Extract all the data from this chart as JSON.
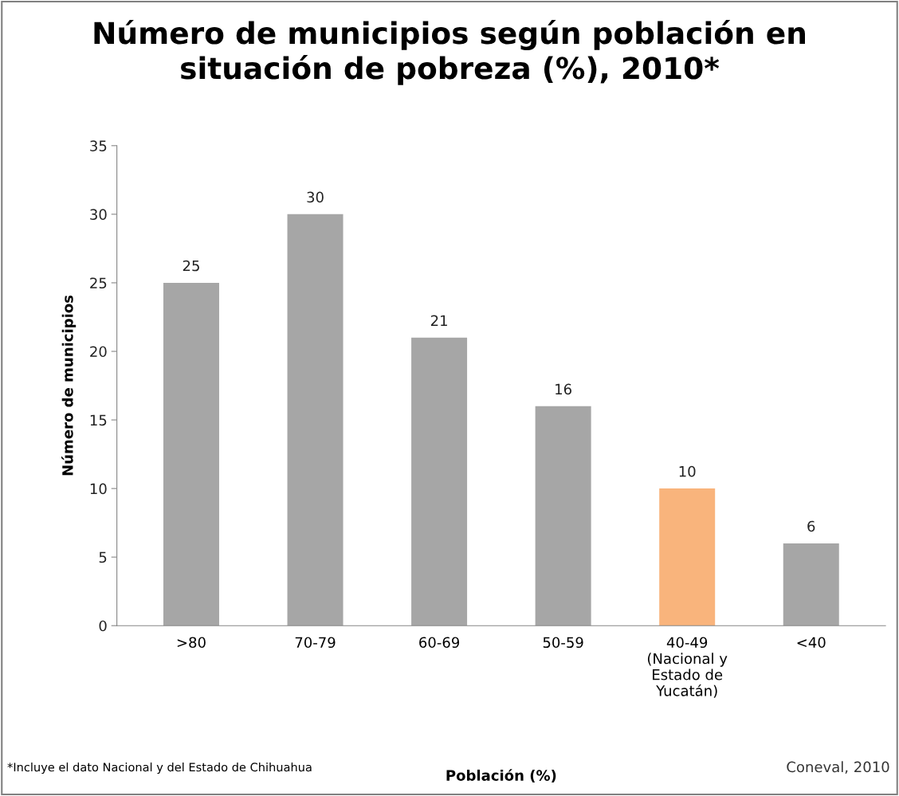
{
  "chart_data": {
    "type": "bar",
    "title": "Número de municipios según población en\nsituación de pobreza (%), 2010*",
    "xlabel": "Población (%)",
    "ylabel": "Número de municipios",
    "categories": [
      ">80",
      "70-79",
      "60-69",
      "50-59",
      "40-49\n(Nacional y\nEstado de\nYucatán)",
      "<40"
    ],
    "values": [
      25,
      30,
      21,
      16,
      10,
      6
    ],
    "colors": [
      "#a6a6a6",
      "#a6a6a6",
      "#a6a6a6",
      "#a6a6a6",
      "#f9b47c",
      "#a6a6a6"
    ],
    "ylim": [
      0,
      35
    ],
    "yticks": [
      0,
      5,
      10,
      15,
      20,
      25,
      30,
      35
    ],
    "data_labels": true,
    "grid": false,
    "legend": false,
    "annotations": [
      "*Incluye el dato Nacional y del Estado de Chihuahua",
      "Coneval, 2010"
    ]
  }
}
